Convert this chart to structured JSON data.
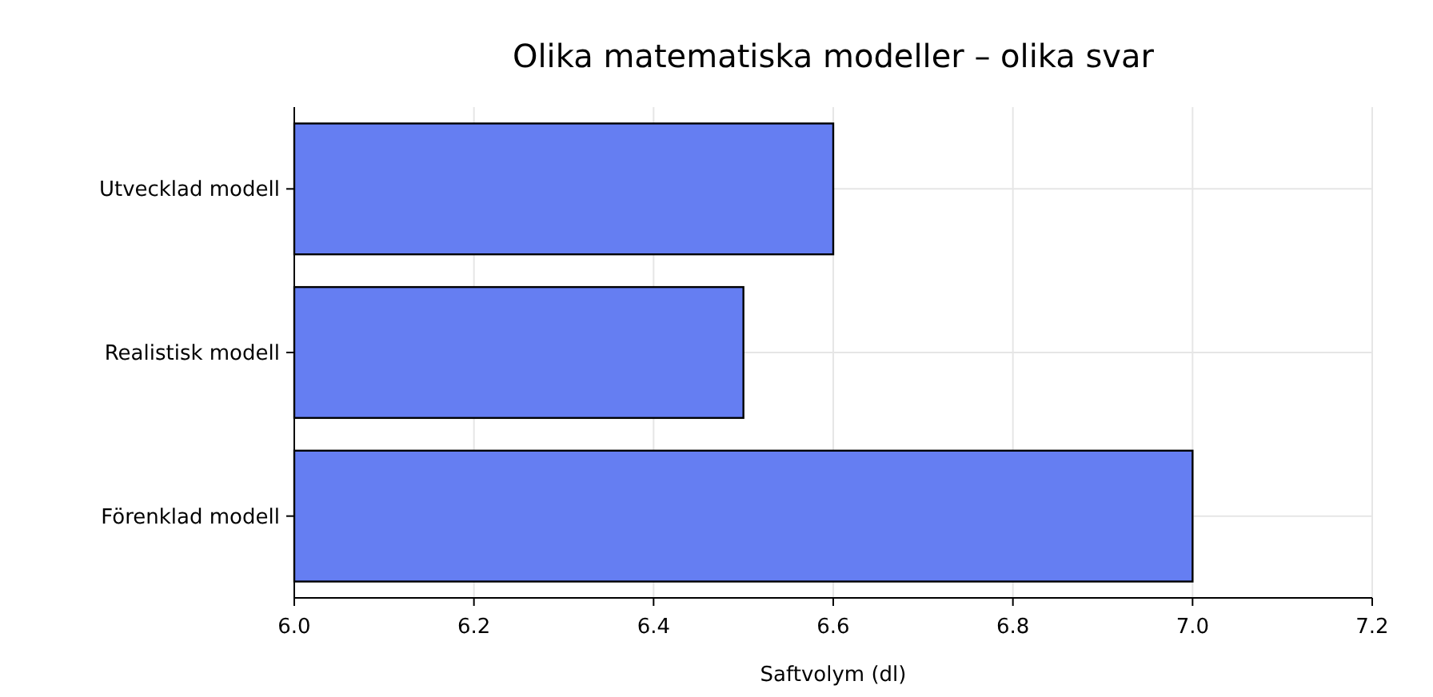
{
  "chart_data": {
    "type": "bar",
    "orientation": "horizontal",
    "title": "Olika matematiska modeller – olika svar",
    "xlabel": "Saftvolym (dl)",
    "categories": [
      "Utvecklad modell",
      "Realistisk modell",
      "Förenklad modell"
    ],
    "values": [
      6.6,
      6.5,
      7.0
    ],
    "color": "#657ef2",
    "xlim": [
      6.0,
      7.2
    ],
    "xticks": [
      {
        "value": 6.0,
        "label": "6.0"
      },
      {
        "value": 6.2,
        "label": "6.2"
      },
      {
        "value": 6.4,
        "label": "6.4"
      },
      {
        "value": 6.6,
        "label": "6.6"
      },
      {
        "value": 6.8,
        "label": "6.8"
      },
      {
        "value": 7.0,
        "label": "7.0"
      },
      {
        "value": 7.2,
        "label": "7.2"
      }
    ],
    "grid": true
  }
}
